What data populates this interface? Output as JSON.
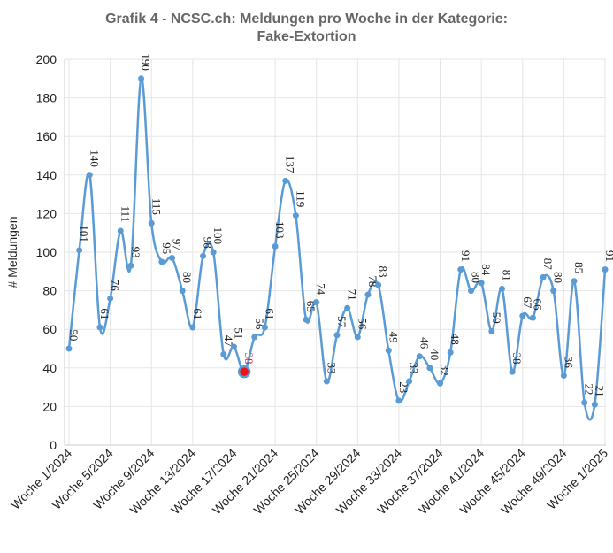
{
  "chart_data": {
    "type": "line",
    "title_line1": "Grafik 4 - NCSC.ch: Meldungen pro Woche in der Kategorie:",
    "title_line2": "Fake-Extortion",
    "ylabel": "# Meldungen",
    "xlabel": "",
    "ylim": [
      0,
      200
    ],
    "yticks": [
      0,
      20,
      40,
      60,
      80,
      100,
      120,
      140,
      160,
      180,
      200
    ],
    "grid": true,
    "x": [
      "Woche 1/2024",
      "Woche 2/2024",
      "Woche 3/2024",
      "Woche 4/2024",
      "Woche 5/2024",
      "Woche 6/2024",
      "Woche 7/2024",
      "Woche 8/2024",
      "Woche 9/2024",
      "Woche 10/2024",
      "Woche 11/2024",
      "Woche 12/2024",
      "Woche 13/2024",
      "Woche 14/2024",
      "Woche 15/2024",
      "Woche 16/2024",
      "Woche 17/2024",
      "Woche 18/2024",
      "Woche 19/2024",
      "Woche 20/2024",
      "Woche 21/2024",
      "Woche 22/2024",
      "Woche 23/2024",
      "Woche 24/2024",
      "Woche 25/2024",
      "Woche 26/2024",
      "Woche 27/2024",
      "Woche 28/2024",
      "Woche 29/2024",
      "Woche 30/2024",
      "Woche 31/2024",
      "Woche 32/2024",
      "Woche 33/2024",
      "Woche 34/2024",
      "Woche 35/2024",
      "Woche 36/2024",
      "Woche 37/2024",
      "Woche 38/2024",
      "Woche 39/2024",
      "Woche 40/2024",
      "Woche 41/2024",
      "Woche 42/2024",
      "Woche 43/2024",
      "Woche 44/2024",
      "Woche 45/2024",
      "Woche 46/2024",
      "Woche 47/2024",
      "Woche 48/2024",
      "Woche 49/2024",
      "Woche 50/2024",
      "Woche 51/2024",
      "Woche 52/2024",
      "Woche 1/2025"
    ],
    "xtick_labels": [
      "Woche 1/2024",
      "Woche 5/2024",
      "Woche 9/2024",
      "Woche 13/2024",
      "Woche 17/2024",
      "Woche 21/2024",
      "Woche 25/2024",
      "Woche 29/2024",
      "Woche 33/2024",
      "Woche 37/2024",
      "Woche 41/2024",
      "Woche 45/2024",
      "Woche 49/2024",
      "Woche 1/2025"
    ],
    "series": [
      {
        "values": [
          50,
          101,
          140,
          61,
          76,
          111,
          93,
          190,
          115,
          95,
          97,
          80,
          61,
          98,
          100,
          47,
          51,
          38,
          56,
          61,
          103,
          137,
          119,
          65,
          74,
          33,
          57,
          71,
          56,
          78,
          83,
          49,
          23,
          33,
          46,
          40,
          32,
          48,
          91,
          80,
          84,
          59,
          81,
          38,
          67,
          66,
          87,
          80,
          36,
          85,
          22,
          21,
          91
        ]
      }
    ],
    "highlight": {
      "x": "Woche 18/2024",
      "value": 38
    },
    "colors": {
      "line": "#5b9bd5",
      "marker": "#5b9bd5",
      "highlight": "#e8151b",
      "grid": "#e6e6e6",
      "axis_text": "#222222",
      "title": "#666666",
      "label_highlight": "#e8151b"
    }
  }
}
